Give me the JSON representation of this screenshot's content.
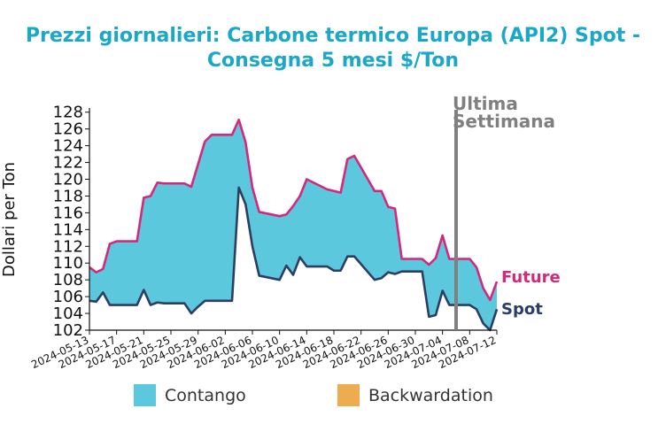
{
  "chart_data": {
    "type": "area",
    "title_line1": "Prezzi giornalieri: Carbone termico Europa (API2) Spot -",
    "title_line2": "Consegna 5 mesi $/Ton",
    "ylabel": "Dollari per Ton",
    "ylim": [
      102,
      128.5
    ],
    "yticks": [
      102,
      104,
      106,
      108,
      110,
      112,
      114,
      116,
      118,
      120,
      122,
      124,
      126,
      128
    ],
    "x_start": "2024-05-13",
    "x_end": "2024-07-12",
    "xticks": [
      "2024-05-13",
      "2024-05-17",
      "2024-05-21",
      "2024-05-25",
      "2024-05-29",
      "2024-06-02",
      "2024-06-06",
      "2024-06-10",
      "2024-06-14",
      "2024-06-18",
      "2024-06-22",
      "2024-06-26",
      "2024-06-30",
      "2024-07-04",
      "2024-07-08",
      "2024-07-12"
    ],
    "dates": [
      "2024-05-13",
      "2024-05-14",
      "2024-05-15",
      "2024-05-16",
      "2024-05-17",
      "2024-05-20",
      "2024-05-21",
      "2024-05-22",
      "2024-05-23",
      "2024-05-24",
      "2024-05-27",
      "2024-05-28",
      "2024-05-29",
      "2024-05-30",
      "2024-05-31",
      "2024-06-03",
      "2024-06-04",
      "2024-06-05",
      "2024-06-06",
      "2024-06-07",
      "2024-06-10",
      "2024-06-11",
      "2024-06-12",
      "2024-06-13",
      "2024-06-14",
      "2024-06-17",
      "2024-06-18",
      "2024-06-19",
      "2024-06-20",
      "2024-06-21",
      "2024-06-24",
      "2024-06-25",
      "2024-06-26",
      "2024-06-27",
      "2024-06-28",
      "2024-07-01",
      "2024-07-02",
      "2024-07-03",
      "2024-07-04",
      "2024-07-05",
      "2024-07-08",
      "2024-07-09",
      "2024-07-10",
      "2024-07-11",
      "2024-07-12"
    ],
    "series": [
      {
        "name": "Future",
        "color": "#d6287a",
        "values": [
          109.5,
          108.9,
          109.3,
          112.3,
          112.6,
          112.6,
          117.8,
          118.0,
          119.6,
          119.5,
          119.5,
          119.1,
          121.8,
          124.5,
          125.3,
          125.3,
          127.1,
          124.4,
          119.0,
          116.1,
          115.6,
          115.8,
          116.8,
          118.0,
          120.0,
          118.8,
          118.6,
          118.4,
          122.4,
          122.8,
          118.6,
          118.6,
          116.7,
          116.5,
          110.5,
          110.5,
          109.8,
          110.6,
          113.3,
          110.5,
          110.5,
          109.5,
          107.0,
          105.6,
          107.8
        ]
      },
      {
        "name": "Spot",
        "color": "#2c3e63",
        "values": [
          105.5,
          105.4,
          106.5,
          105.0,
          105.0,
          105.0,
          106.8,
          105.0,
          105.3,
          105.2,
          105.2,
          104.0,
          104.8,
          105.5,
          105.5,
          105.5,
          119.0,
          117.0,
          112.0,
          108.5,
          108.0,
          109.7,
          108.6,
          110.7,
          109.6,
          109.6,
          109.1,
          109.1,
          110.8,
          110.8,
          108.0,
          108.2,
          108.9,
          108.7,
          109.0,
          109.0,
          103.6,
          103.8,
          106.7,
          105.0,
          105.0,
          104.5,
          102.8,
          102.0,
          104.5
        ]
      }
    ],
    "fill_colors": {
      "contango": "#5bc8de",
      "backwardation": "#edac4f"
    },
    "legend": [
      {
        "label": "Contango",
        "color": "#5bc8de"
      },
      {
        "label": "Backwardation",
        "color": "#edac4f"
      }
    ],
    "legend_position": "bottom",
    "vline": {
      "date": "2024-07-06",
      "label_line1": "Ultima",
      "label_line2": "Settimana",
      "color": "#808080"
    },
    "end_labels": [
      {
        "label": "Future",
        "color": "#d6287a"
      },
      {
        "label": "Spot",
        "color": "#2c3e63"
      }
    ],
    "grid": false
  }
}
